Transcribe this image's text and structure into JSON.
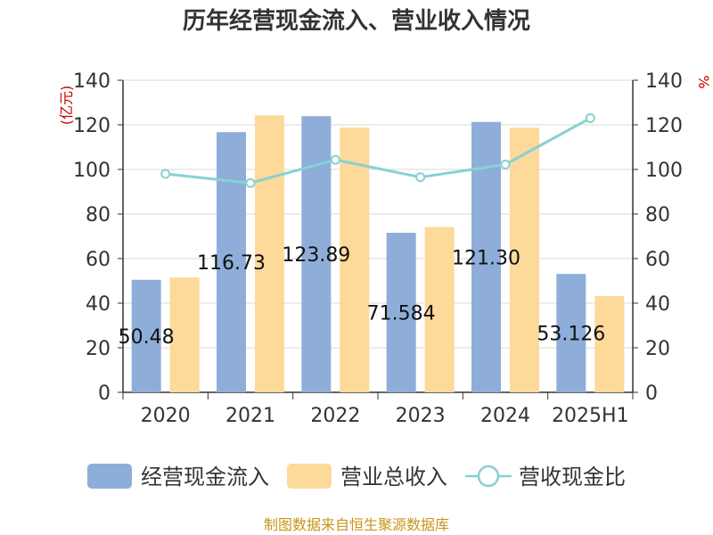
{
  "chart_data": {
    "type": "bar",
    "title": "历年经营现金流入、营业收入情况",
    "categories": [
      "2020",
      "2021",
      "2022",
      "2023",
      "2024",
      "2025H1"
    ],
    "y_left": {
      "unit": "(亿元)",
      "ylim": [
        0,
        140
      ],
      "ticks": [
        "0",
        "20",
        "40",
        "60",
        "80",
        "100",
        "120",
        "140"
      ]
    },
    "y_right": {
      "unit": "%",
      "ylim": [
        0,
        140
      ],
      "ticks": [
        "0",
        "20",
        "40",
        "60",
        "80",
        "100",
        "120",
        "140"
      ]
    },
    "series": [
      {
        "name": "经营现金流入",
        "kind": "bar",
        "axis": "left",
        "color": "#8eaed9",
        "values": [
          50.48,
          116.73,
          123.89,
          71.584,
          121.3,
          53.126
        ],
        "labels": [
          "50.48",
          "116.73",
          "123.89",
          "71.584",
          "121.30",
          "53.126"
        ]
      },
      {
        "name": "营业总收入",
        "kind": "bar",
        "axis": "left",
        "color": "#fdd99a",
        "values": [
          51.5,
          124.3,
          118.8,
          74.2,
          118.7,
          43.2
        ]
      },
      {
        "name": "营收现金比",
        "kind": "line",
        "axis": "right",
        "color": "#88d1d4",
        "values": [
          98.0,
          93.9,
          104.3,
          96.5,
          102.2,
          123.0
        ]
      }
    ],
    "grid": true,
    "legend_position": "bottom",
    "source": "制图数据来自恒生聚源数据库"
  }
}
